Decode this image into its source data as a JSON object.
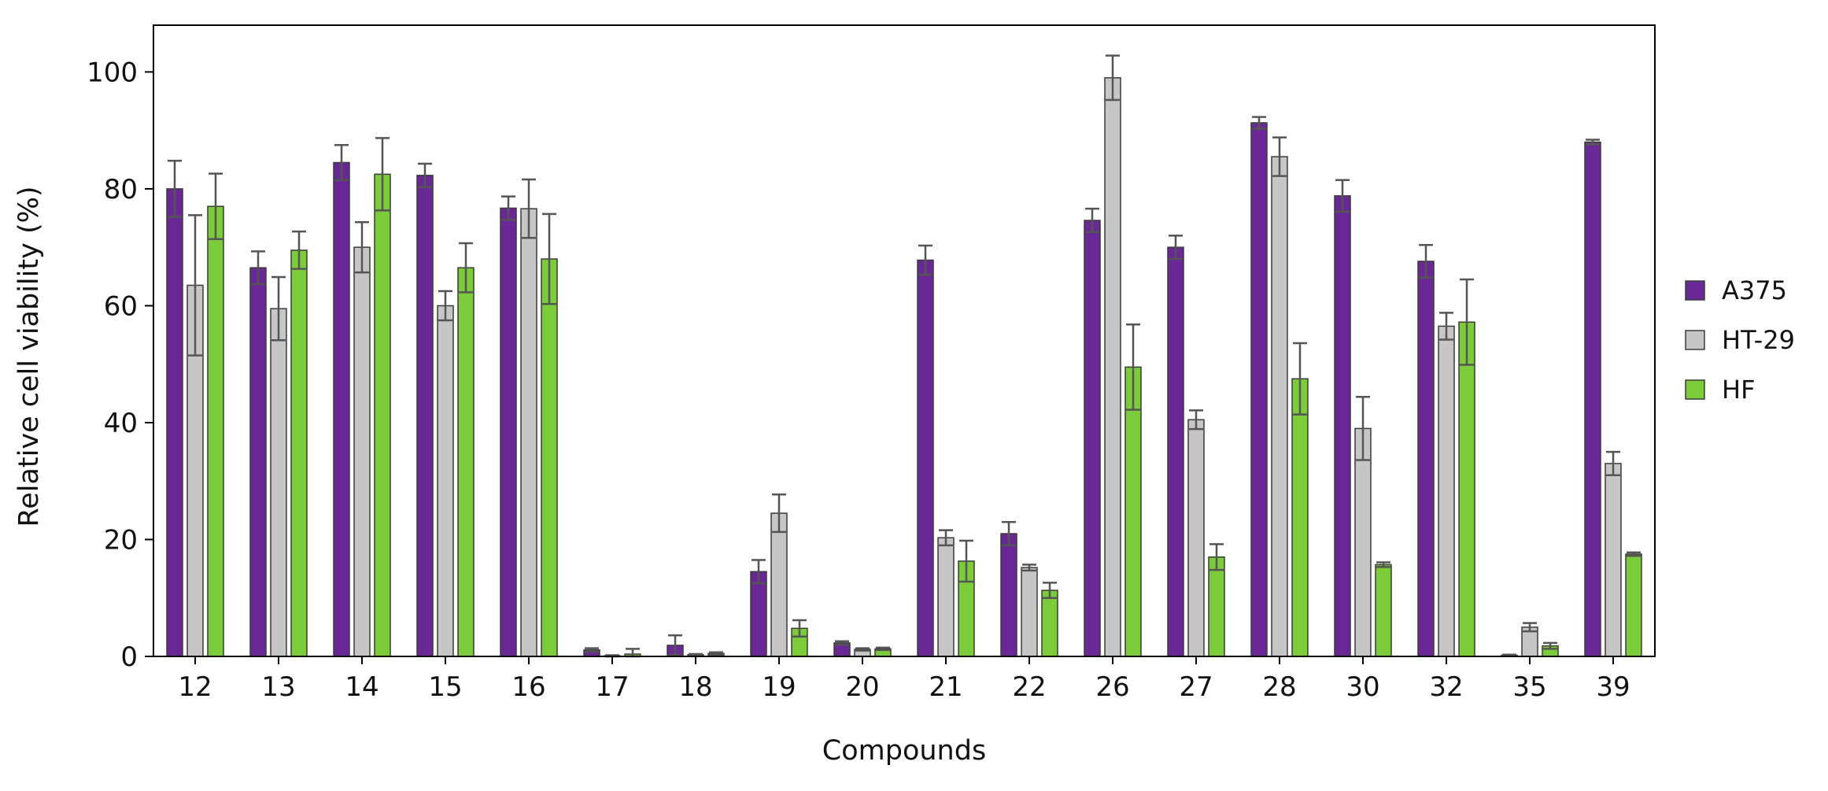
{
  "chart_data": {
    "type": "bar",
    "xlabel": "Compounds",
    "ylabel": "Relative cell viability (%)",
    "ylim": [
      0,
      108
    ],
    "yticks": [
      0,
      20,
      40,
      60,
      80,
      100
    ],
    "grid": false,
    "legend_position": "right",
    "categories": [
      "12",
      "13",
      "14",
      "15",
      "16",
      "17",
      "18",
      "19",
      "20",
      "21",
      "22",
      "26",
      "27",
      "28",
      "30",
      "32",
      "35",
      "39"
    ],
    "series": [
      {
        "name": "A375",
        "color": "#6a2896",
        "values": [
          80,
          66.5,
          84.5,
          82.3,
          76.7,
          1.1,
          1.9,
          14.5,
          2.3,
          67.8,
          21,
          74.6,
          70,
          91.3,
          78.8,
          67.6,
          0.2,
          88
        ],
        "errors": [
          4.8,
          2.8,
          3,
          2,
          2,
          0.3,
          1.7,
          2,
          0.3,
          2.5,
          2,
          2,
          2,
          1,
          2.7,
          2.8,
          0.1,
          0.4
        ]
      },
      {
        "name": "HT-29",
        "color": "#c6c6c6",
        "values": [
          63.5,
          59.5,
          70,
          60,
          76.6,
          0.1,
          0.3,
          24.5,
          1.2,
          20.3,
          15.2,
          99,
          40.5,
          85.5,
          39,
          56.5,
          5,
          33
        ],
        "errors": [
          12,
          5.4,
          4.3,
          2.5,
          5,
          0.1,
          0.1,
          3.2,
          0.2,
          1.3,
          0.5,
          3.8,
          1.6,
          3.3,
          5.4,
          2.3,
          0.7,
          2
        ]
      },
      {
        "name": "HF",
        "color": "#7ccb3a",
        "values": [
          77,
          69.5,
          82.5,
          66.5,
          68,
          0.4,
          0.5,
          4.8,
          1.3,
          16.3,
          11.3,
          49.5,
          17,
          47.5,
          15.7,
          57.2,
          1.8,
          17.5
        ],
        "errors": [
          5.6,
          3.2,
          6.2,
          4.2,
          7.7,
          0.9,
          0.2,
          1.4,
          0.2,
          3.5,
          1.3,
          7.3,
          2.2,
          6.1,
          0.4,
          7.3,
          0.5,
          0.3
        ]
      }
    ]
  }
}
